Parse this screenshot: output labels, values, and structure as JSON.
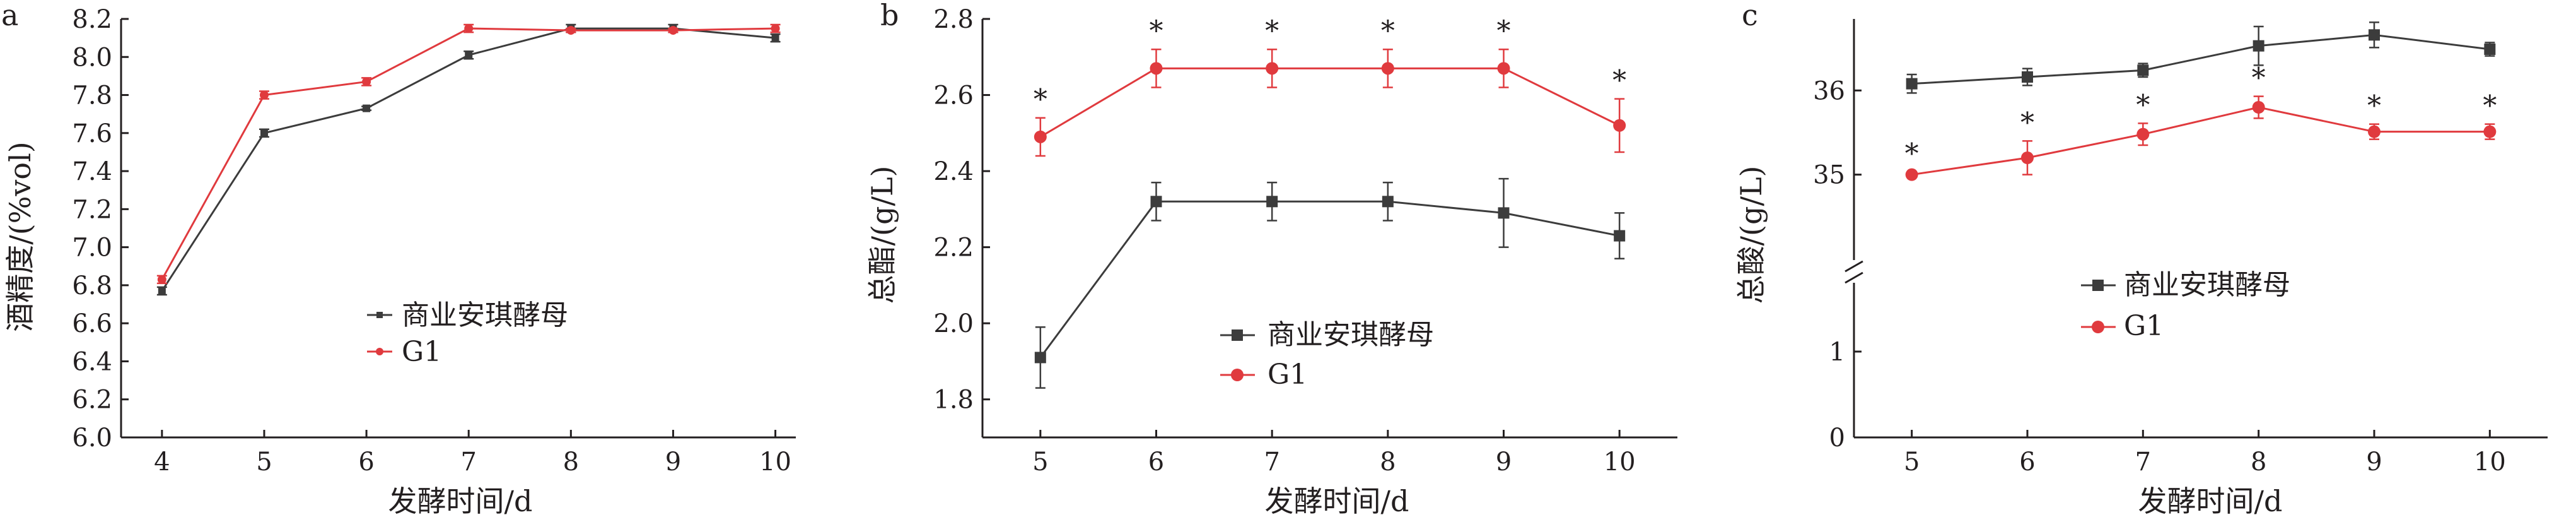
{
  "colors": {
    "black_series": "#3c3c3c",
    "red_series": "#e03a3e",
    "axis": "#231f20"
  },
  "chart_data": [
    {
      "type": "line",
      "panel_label": "a",
      "xlabel": "发酵时间/d",
      "ylabel": "酒精度/(%vol)",
      "x": [
        4,
        5,
        6,
        7,
        8,
        9,
        10
      ],
      "xlim": [
        3.6,
        10.2
      ],
      "ylim": [
        6.0,
        8.2
      ],
      "y_ticks": [
        "6.0",
        "6.2",
        "6.4",
        "6.6",
        "6.8",
        "7.0",
        "7.2",
        "7.4",
        "7.6",
        "7.8",
        "8.0",
        "8.2"
      ],
      "x_ticks": [
        "4",
        "5",
        "6",
        "7",
        "8",
        "9",
        "10"
      ],
      "legend_position": "center",
      "series": [
        {
          "name": "商业安琪酵母",
          "marker": "small-square",
          "color": "#3c3c3c",
          "values": [
            6.77,
            7.6,
            7.73,
            8.01,
            8.15,
            8.15,
            8.1
          ],
          "errors": [
            0.02,
            0.02,
            0.01,
            0.02,
            0.02,
            0.02,
            0.02
          ]
        },
        {
          "name": "G1",
          "marker": "small-circle",
          "color": "#e03a3e",
          "values": [
            6.83,
            7.8,
            7.87,
            8.15,
            8.14,
            8.14,
            8.15
          ],
          "errors": [
            0.02,
            0.02,
            0.02,
            0.02,
            0.01,
            0.01,
            0.02
          ]
        }
      ],
      "annotations": []
    },
    {
      "type": "line",
      "panel_label": "b",
      "xlabel": "发酵时间/d",
      "ylabel": "总酯/(g/L)",
      "x": [
        5,
        6,
        7,
        8,
        9,
        10
      ],
      "xlim": [
        4.5,
        10.5
      ],
      "ylim": [
        1.7,
        2.8
      ],
      "y_ticks": [
        "1.8",
        "2.0",
        "2.2",
        "2.4",
        "2.6",
        "2.8"
      ],
      "x_ticks": [
        "5",
        "6",
        "7",
        "8",
        "9",
        "10"
      ],
      "legend_position": "lower-right",
      "series": [
        {
          "name": "商业安琪酵母",
          "marker": "square",
          "color": "#3c3c3c",
          "values": [
            1.91,
            2.32,
            2.32,
            2.32,
            2.29,
            2.23
          ],
          "errors": [
            0.08,
            0.05,
            0.05,
            0.05,
            0.09,
            0.06
          ]
        },
        {
          "name": "G1",
          "marker": "circle",
          "color": "#e03a3e",
          "values": [
            2.49,
            2.67,
            2.67,
            2.67,
            2.67,
            2.52
          ],
          "errors": [
            0.05,
            0.05,
            0.05,
            0.05,
            0.05,
            0.07
          ]
        }
      ],
      "annotations": [
        "*",
        "*",
        "*",
        "*",
        "*",
        "*"
      ]
    },
    {
      "type": "line",
      "panel_label": "c",
      "xlabel": "发酵时间/d",
      "ylabel": "总酸/(g/L)",
      "x": [
        5,
        6,
        7,
        8,
        9,
        10
      ],
      "xlim": [
        4.5,
        10.5
      ],
      "y_break": true,
      "ylim_lower": [
        0,
        2
      ],
      "ylim_upper": [
        34.0,
        36.85
      ],
      "y_ticks": [
        "0",
        "1",
        "35",
        "36"
      ],
      "x_ticks": [
        "5",
        "6",
        "7",
        "8",
        "9",
        "10"
      ],
      "legend_position": "center-left",
      "series": [
        {
          "name": "商业安琪酵母",
          "marker": "square",
          "color": "#3c3c3c",
          "values": [
            36.08,
            36.16,
            36.24,
            36.53,
            36.66,
            36.49
          ],
          "errors": [
            0.11,
            0.1,
            0.08,
            0.23,
            0.15,
            0.08
          ]
        },
        {
          "name": "G1",
          "marker": "circle",
          "color": "#e03a3e",
          "values": [
            35.0,
            35.2,
            35.48,
            35.8,
            35.51,
            35.51
          ],
          "errors": [
            0.03,
            0.2,
            0.13,
            0.13,
            0.09,
            0.09
          ]
        }
      ],
      "annotations": [
        "*",
        "*",
        "*",
        "*",
        "*",
        "*"
      ]
    }
  ]
}
